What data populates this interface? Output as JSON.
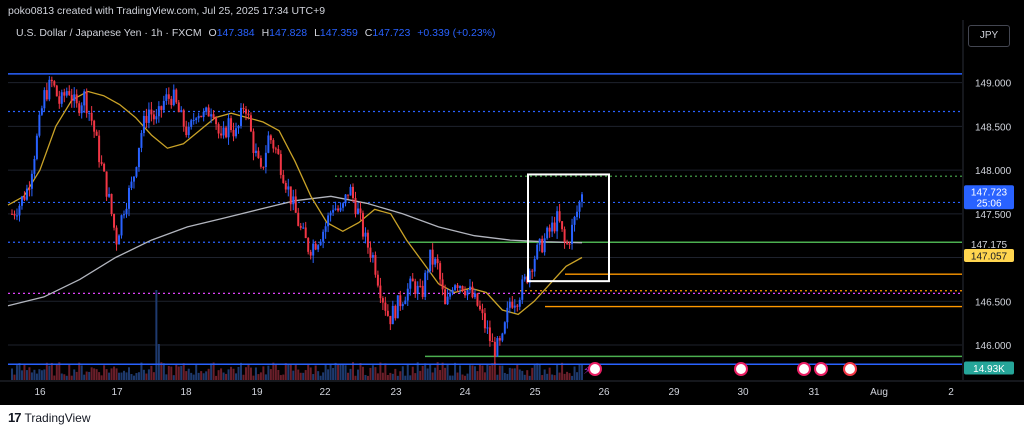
{
  "header": {
    "credit": "poko0813 created with TradingView.com, Jul 25, 2025 17:34 UTC+9",
    "symbol": "U.S. Dollar / Japanese Yen · 1h · FXCM",
    "open_label": "O",
    "open": "147.384",
    "high_label": "H",
    "high": "147.828",
    "low_label": "L",
    "low": "147.359",
    "close_label": "C",
    "close": "147.723",
    "change": "+0.339 (+0.23%)",
    "currency": "JPY"
  },
  "footer": {
    "brand": "TradingView"
  },
  "colors": {
    "background": "#000000",
    "bull": "#2962ff",
    "bear": "#f23645",
    "ma_fast": "#c9a227",
    "ma_slow": "#b2b5be",
    "level_blue": "#2962ff",
    "level_green": "#4caf50",
    "level_orange": "#ff9800",
    "level_magenta": "#e040fb",
    "box": "#ffffff"
  },
  "chart_data": {
    "type": "candlestick",
    "title": "U.S. Dollar / Japanese Yen · 1h · FXCM",
    "y_axis": {
      "ticks": [
        "149.000",
        "148.500",
        "148.000",
        "147.500",
        "147.000",
        "146.500",
        "146.000"
      ],
      "range": [
        145.6,
        149.35
      ]
    },
    "x_axis": {
      "ticks": [
        "16",
        "17",
        "18",
        "19",
        "22",
        "23",
        "24",
        "25",
        "26",
        "29",
        "30",
        "31",
        "Aug",
        "2"
      ]
    },
    "price_labels": {
      "last_price": "147.723",
      "countdown": "25:06",
      "level_1": "147.175",
      "level_2": "147.057",
      "volume": "14.93K"
    },
    "horizontal_levels": [
      {
        "value": 149.1,
        "color": "blue",
        "style": "solid"
      },
      {
        "value": 148.67,
        "color": "blue",
        "style": "dotted"
      },
      {
        "value": 147.93,
        "color": "green",
        "style": "dotted"
      },
      {
        "value": 147.63,
        "color": "blue",
        "style": "dotted"
      },
      {
        "value": 147.175,
        "color": "blue",
        "style": "dotted"
      },
      {
        "value": 147.175,
        "color": "green",
        "style": "solid"
      },
      {
        "value": 146.81,
        "color": "orange",
        "style": "solid"
      },
      {
        "value": 146.62,
        "color": "orange",
        "style": "dotted"
      },
      {
        "value": 146.59,
        "color": "magenta",
        "style": "dotted"
      },
      {
        "value": 146.44,
        "color": "orange",
        "style": "solid"
      },
      {
        "value": 145.87,
        "color": "green",
        "style": "solid"
      },
      {
        "value": 145.78,
        "color": "blue",
        "style": "solid"
      }
    ],
    "highlight_box": {
      "price_high": 147.95,
      "price_low": 146.73
    },
    "close_path": [
      147.5,
      147.62,
      147.8,
      148.3,
      148.85,
      149.0,
      148.75,
      148.95,
      148.7,
      148.85,
      148.55,
      148.1,
      147.7,
      147.2,
      147.6,
      147.85,
      148.4,
      148.7,
      148.55,
      148.8,
      148.85,
      148.6,
      148.4,
      148.7,
      148.6,
      148.75,
      148.3,
      148.55,
      148.4,
      148.8,
      148.3,
      147.95,
      148.4,
      148.2,
      147.9,
      147.6,
      147.3,
      147.1,
      147.2,
      147.35,
      147.6,
      147.5,
      147.8,
      147.55,
      147.2,
      147.0,
      146.6,
      146.3,
      146.45,
      146.6,
      146.7,
      146.55,
      147.0,
      146.9,
      146.4,
      146.75,
      146.7,
      146.6,
      146.45,
      146.2,
      145.95,
      146.0,
      146.5,
      146.55,
      146.75,
      147.0,
      147.15,
      147.3,
      147.45,
      147.1,
      147.4,
      147.723
    ],
    "ma_fast": [
      147.6,
      147.7,
      148.0,
      148.5,
      148.8,
      148.9,
      148.85,
      148.75,
      148.6,
      148.4,
      148.25,
      148.3,
      148.45,
      148.6,
      148.65,
      148.6,
      148.55,
      148.45,
      148.1,
      147.7,
      147.4,
      147.3,
      147.4,
      147.55,
      147.5,
      147.2,
      146.95,
      146.7,
      146.6,
      146.65,
      146.6,
      146.4,
      146.35,
      146.5,
      146.7,
      146.9,
      147.0
    ],
    "ma_slow": [
      146.45,
      146.55,
      146.75,
      147.0,
      147.2,
      147.35,
      147.45,
      147.55,
      147.65,
      147.7,
      147.62,
      147.5,
      147.35,
      147.25,
      147.2,
      147.18,
      147.17
    ]
  }
}
